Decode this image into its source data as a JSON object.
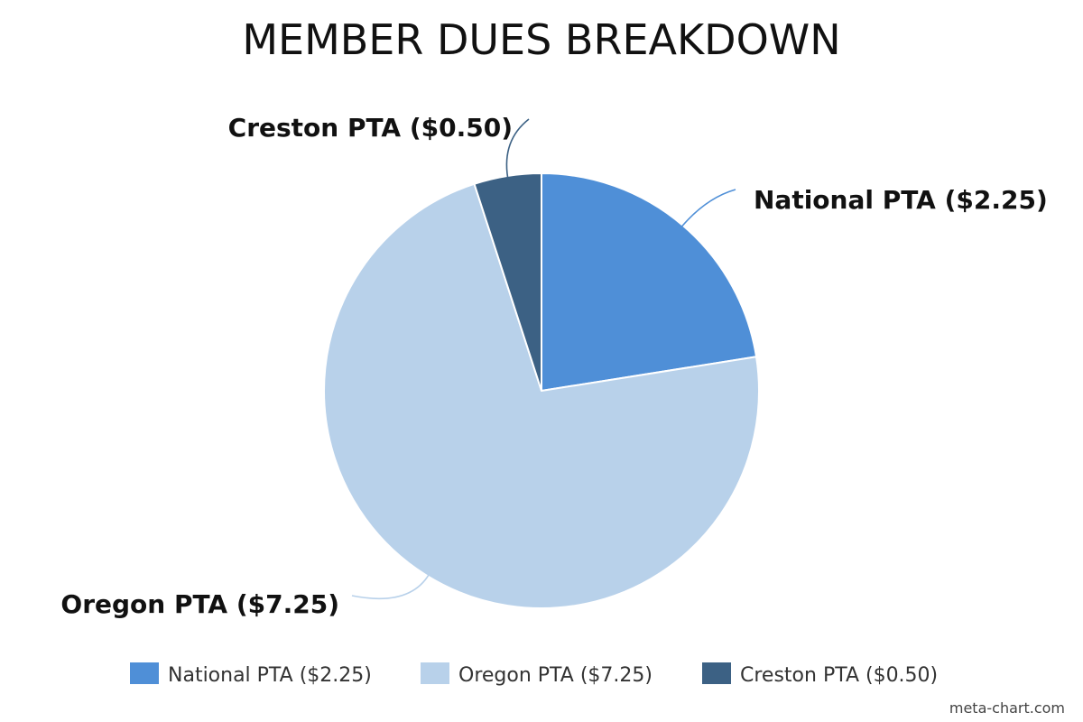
{
  "chart_data": {
    "type": "pie",
    "title": "MEMBER DUES BREAKDOWN",
    "start_angle_deg": 0,
    "direction": "clockwise",
    "slices": [
      {
        "label": "National PTA ($2.25)",
        "value": 2.25,
        "color": "#4f8fd7"
      },
      {
        "label": "Oregon PTA ($7.25)",
        "value": 7.25,
        "color": "#b8d1ea"
      },
      {
        "label": "Creston PTA ($0.50)",
        "value": 0.5,
        "color": "#3c6184"
      }
    ],
    "legend": {
      "position": "bottom",
      "entries": [
        "National PTA ($2.25)",
        "Oregon PTA ($7.25)",
        "Creston PTA ($0.50)"
      ]
    }
  },
  "watermark": "meta-chart.com"
}
